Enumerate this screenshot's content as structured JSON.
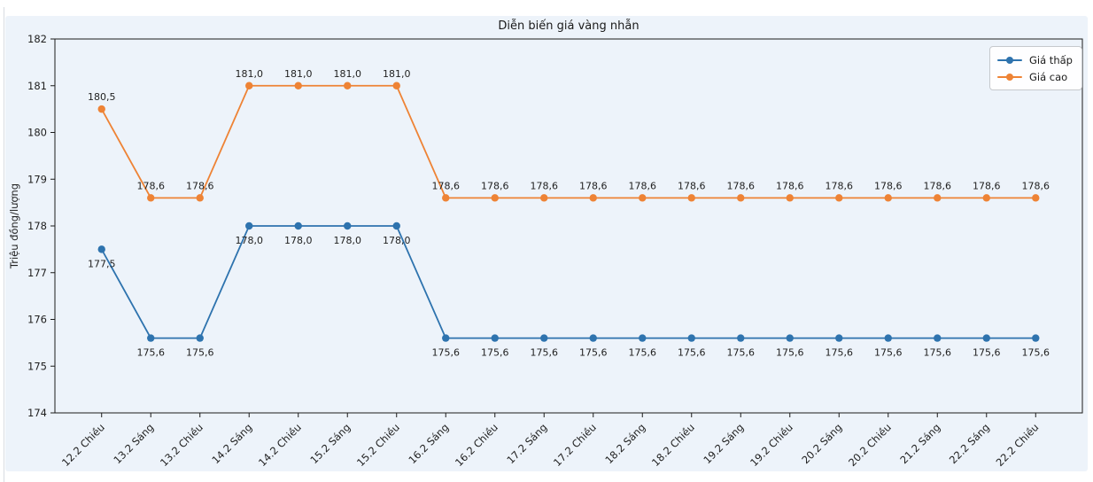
{
  "frame": {
    "background": "#ffffff",
    "panel_border_color": "#d8dce1"
  },
  "chart_data": {
    "type": "line",
    "title": "Diễn biến giá vàng nhẫn",
    "xlabel": "",
    "ylabel": "Triệu đồng/lượng",
    "background": "#edf3fa",
    "axis_color": "#1b1b1b",
    "text_color": "#1f1f1f",
    "grid": false,
    "point_labels": true,
    "decimal_separator": ",",
    "ylim": [
      174,
      182
    ],
    "yticks": [
      174,
      175,
      176,
      177,
      178,
      179,
      180,
      181,
      182
    ],
    "legend": {
      "position": "top-right",
      "entries": [
        "Giá thấp",
        "Giá cao"
      ]
    },
    "categories": [
      "12.2 Chiều",
      "13.2 Sáng",
      "13.2 Chiều",
      "14.2 Sáng",
      "14.2 Chiều",
      "15.2 Sáng",
      "15.2 Chiều",
      "16.2 Sáng",
      "16.2 Chiều",
      "17.2 Sáng",
      "17.2 Chiều",
      "18.2 Sáng",
      "18.2 Chiều",
      "19.2 Sáng",
      "19.2 Chiều",
      "20.2 Sáng",
      "20.2 Chiều",
      "21.2 Sáng",
      "22.2 Sáng",
      "22.2 Chiều"
    ],
    "series": [
      {
        "name": "Giá thấp",
        "color": "#2e73ae",
        "label_position": "below",
        "values": [
          177.5,
          175.6,
          175.6,
          178.0,
          178.0,
          178.0,
          178.0,
          175.6,
          175.6,
          175.6,
          175.6,
          175.6,
          175.6,
          175.6,
          175.6,
          175.6,
          175.6,
          175.6,
          175.6,
          175.6
        ]
      },
      {
        "name": "Giá cao",
        "color": "#ee8335",
        "label_position": "above",
        "values": [
          180.5,
          178.6,
          178.6,
          181.0,
          181.0,
          181.0,
          181.0,
          178.6,
          178.6,
          178.6,
          178.6,
          178.6,
          178.6,
          178.6,
          178.6,
          178.6,
          178.6,
          178.6,
          178.6,
          178.6
        ]
      }
    ]
  }
}
